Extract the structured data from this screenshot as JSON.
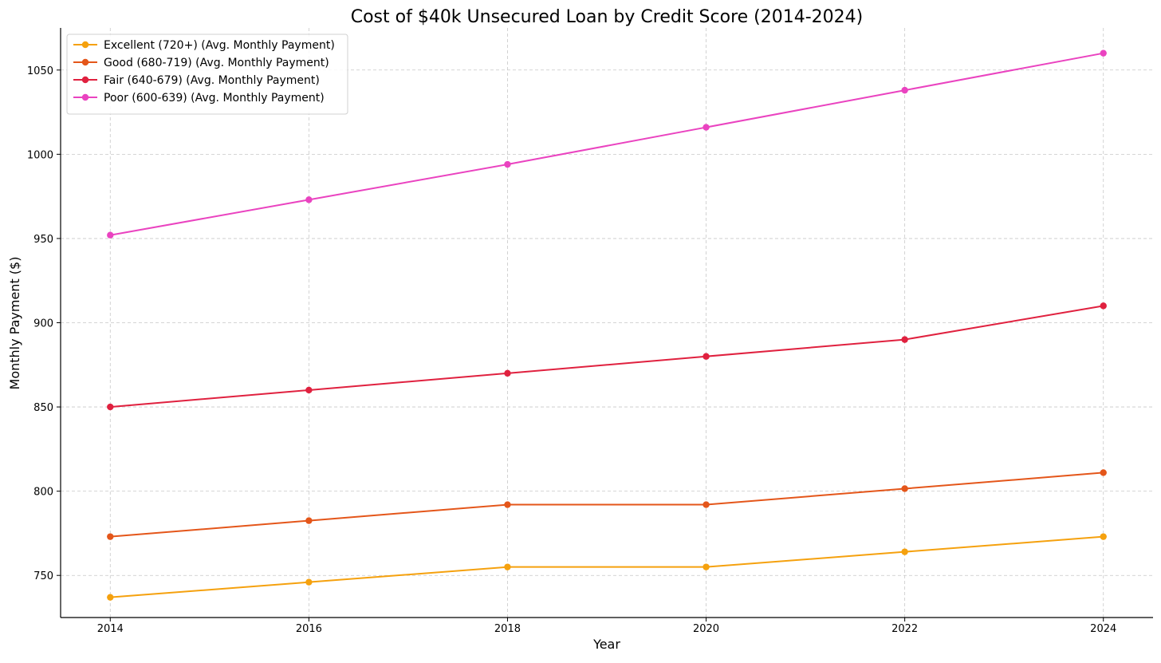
{
  "chart_data": {
    "type": "line",
    "title": "Cost of $40k Unsecured Loan by Credit Score (2014-2024)",
    "xlabel": "Year",
    "ylabel": "Monthly Payment ($)",
    "x": [
      2014,
      2016,
      2018,
      2020,
      2022,
      2024
    ],
    "x_tick_labels": [
      "2014",
      "2016",
      "2018",
      "2020",
      "2022",
      "2024"
    ],
    "xlim": [
      2013.5,
      2024.5
    ],
    "ylim": [
      725,
      1075
    ],
    "y_ticks": [
      750,
      800,
      850,
      900,
      950,
      1000,
      1050
    ],
    "y_tick_labels": [
      "750",
      "800",
      "850",
      "900",
      "950",
      "1000",
      "1050"
    ],
    "grid": true,
    "legend_position": "top-left",
    "series": [
      {
        "name": "Excellent (720+) (Avg. Monthly Payment)",
        "color": "#f5a10e",
        "values": [
          737,
          746,
          755,
          755,
          764,
          773
        ]
      },
      {
        "name": "Good (680-719) (Avg. Monthly Payment)",
        "color": "#e4561a",
        "values": [
          773,
          782.5,
          792,
          792,
          801.5,
          811
        ]
      },
      {
        "name": "Fair (640-679) (Avg. Monthly Payment)",
        "color": "#e0213f",
        "values": [
          850,
          860,
          870,
          880,
          890,
          910
        ]
      },
      {
        "name": "Poor (600-639) (Avg. Monthly Payment)",
        "color": "#ea43c0",
        "values": [
          952,
          973,
          994,
          1016,
          1038,
          1060
        ]
      }
    ]
  }
}
